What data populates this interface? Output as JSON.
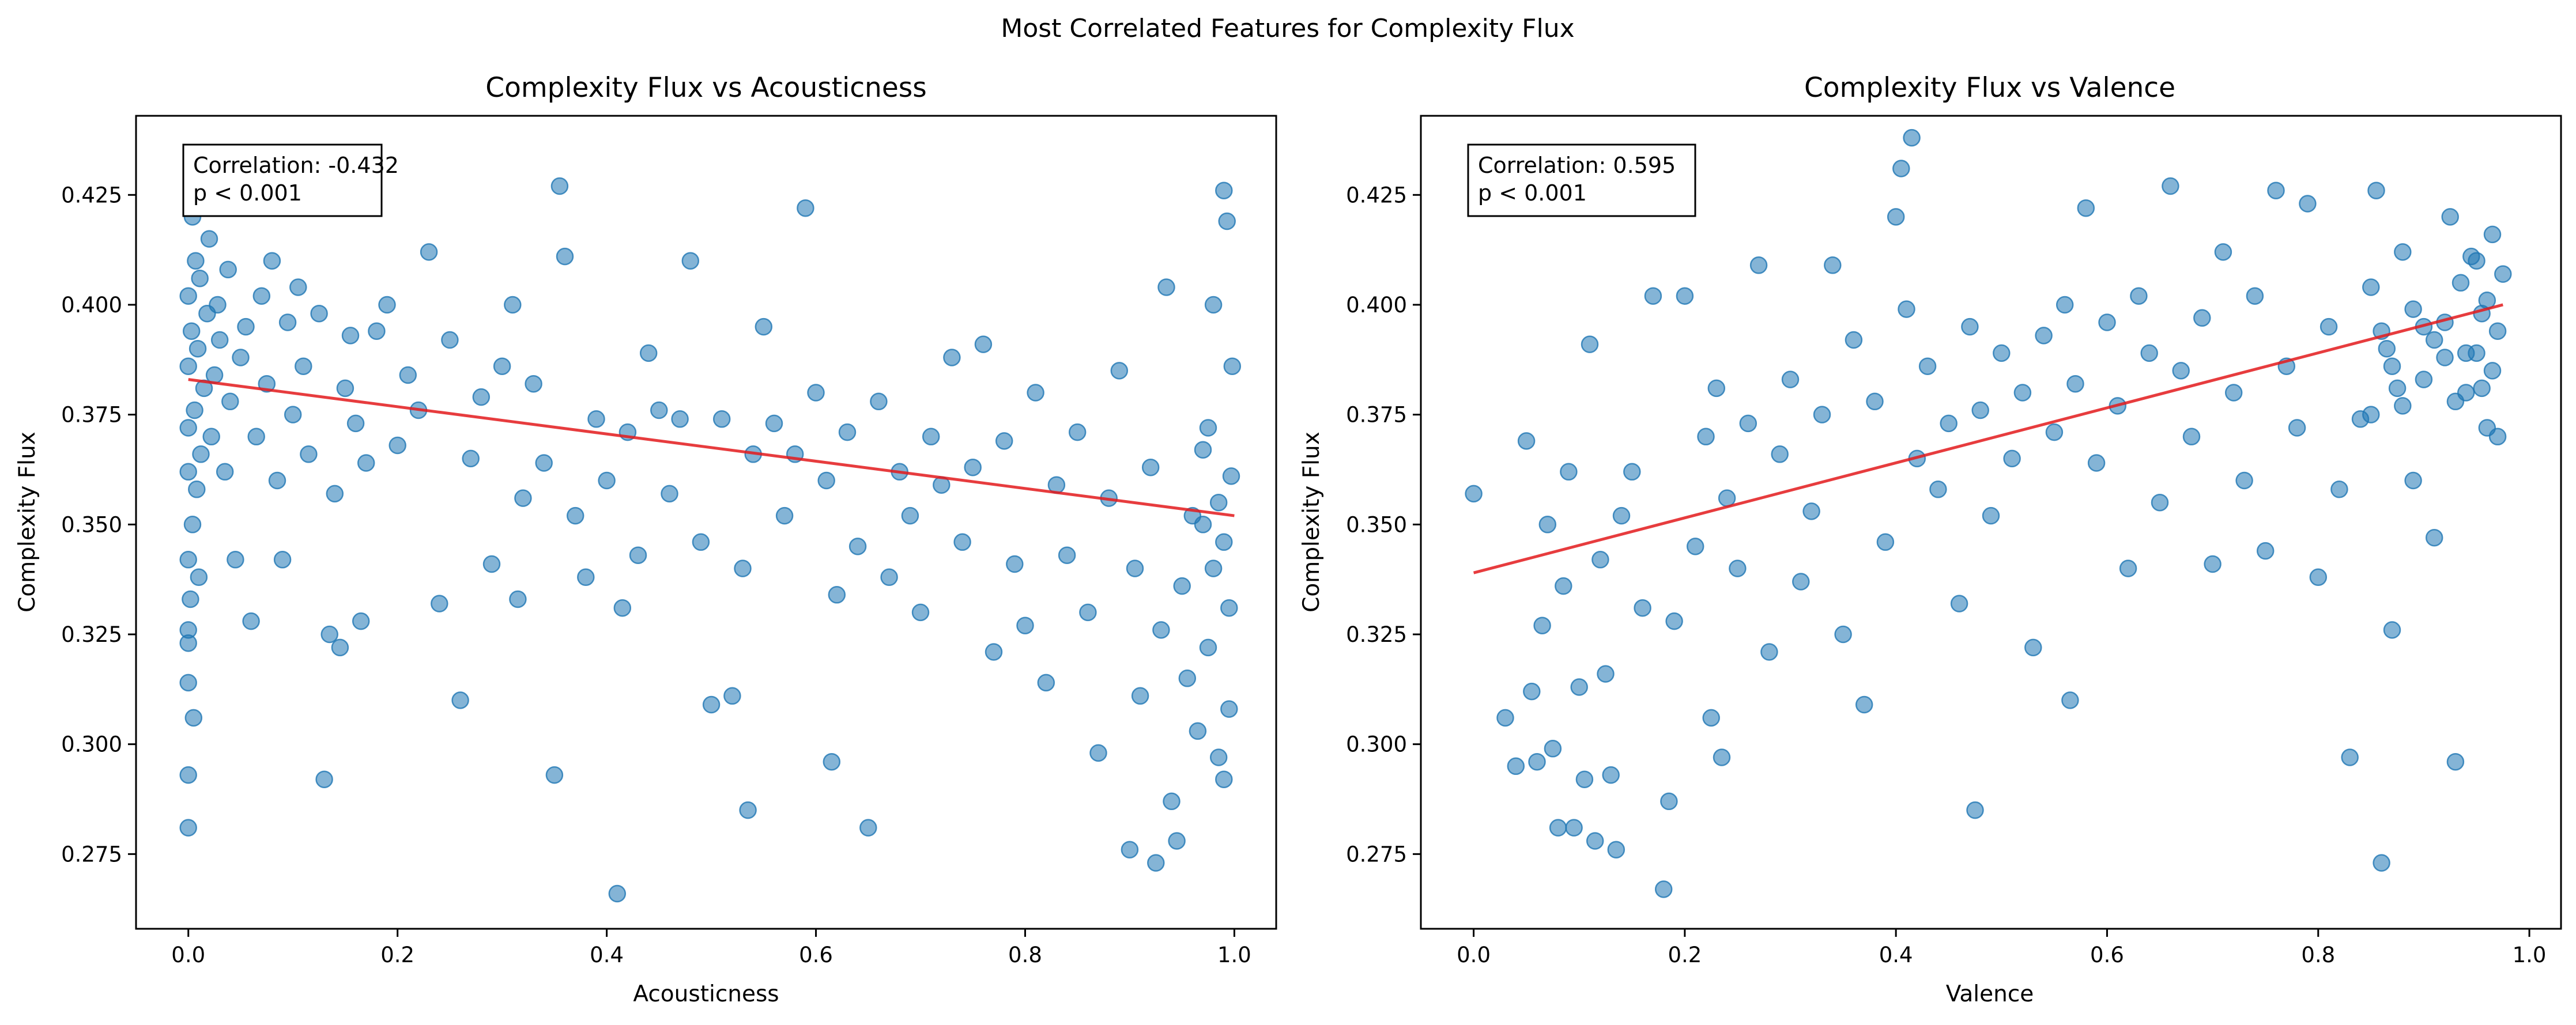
{
  "figure": {
    "title": "Most Correlated Features for Complexity Flux"
  },
  "colors": {
    "points": "#1f77b4",
    "fit_line": "#e31a1c"
  },
  "chart_data": [
    {
      "type": "scatter",
      "title": "Complexity Flux vs Acousticness",
      "xlabel": "Acousticness",
      "ylabel": "Complexity Flux",
      "xlim": [
        -0.05,
        1.04
      ],
      "ylim": [
        0.258,
        0.443
      ],
      "xticks": [
        0.0,
        0.2,
        0.4,
        0.6,
        0.8,
        1.0
      ],
      "xtick_labels": [
        "0.0",
        "0.2",
        "0.4",
        "0.6",
        "0.8",
        "1.0"
      ],
      "yticks": [
        0.275,
        0.3,
        0.325,
        0.35,
        0.375,
        0.4,
        0.425
      ],
      "ytick_labels": [
        "0.275",
        "0.300",
        "0.325",
        "0.350",
        "0.375",
        "0.400",
        "0.425"
      ],
      "annotation": {
        "correlation": "Correlation: -0.432",
        "p_value": "p < 0.001"
      },
      "trend_line": {
        "x": [
          0.0,
          1.0
        ],
        "y": [
          0.383,
          0.352
        ]
      },
      "points": [
        [
          0.0,
          0.281
        ],
        [
          0.0,
          0.293
        ],
        [
          0.005,
          0.306
        ],
        [
          0.0,
          0.314
        ],
        [
          0.0,
          0.323
        ],
        [
          0.0,
          0.326
        ],
        [
          0.002,
          0.333
        ],
        [
          0.01,
          0.338
        ],
        [
          0.0,
          0.342
        ],
        [
          0.004,
          0.35
        ],
        [
          0.008,
          0.358
        ],
        [
          0.0,
          0.362
        ],
        [
          0.012,
          0.366
        ],
        [
          0.0,
          0.372
        ],
        [
          0.006,
          0.376
        ],
        [
          0.015,
          0.381
        ],
        [
          0.0,
          0.386
        ],
        [
          0.009,
          0.39
        ],
        [
          0.003,
          0.394
        ],
        [
          0.018,
          0.398
        ],
        [
          0.0,
          0.402
        ],
        [
          0.011,
          0.406
        ],
        [
          0.007,
          0.41
        ],
        [
          0.02,
          0.415
        ],
        [
          0.004,
          0.42
        ],
        [
          0.013,
          0.426
        ],
        [
          0.025,
          0.384
        ],
        [
          0.03,
          0.392
        ],
        [
          0.022,
          0.37
        ],
        [
          0.028,
          0.4
        ],
        [
          0.035,
          0.362
        ],
        [
          0.04,
          0.378
        ],
        [
          0.038,
          0.408
        ],
        [
          0.045,
          0.342
        ],
        [
          0.05,
          0.388
        ],
        [
          0.055,
          0.395
        ],
        [
          0.06,
          0.328
        ],
        [
          0.065,
          0.37
        ],
        [
          0.07,
          0.402
        ],
        [
          0.075,
          0.382
        ],
        [
          0.08,
          0.41
        ],
        [
          0.085,
          0.36
        ],
        [
          0.09,
          0.342
        ],
        [
          0.095,
          0.396
        ],
        [
          0.1,
          0.375
        ],
        [
          0.105,
          0.404
        ],
        [
          0.11,
          0.386
        ],
        [
          0.115,
          0.366
        ],
        [
          0.12,
          0.426
        ],
        [
          0.125,
          0.398
        ],
        [
          0.13,
          0.292
        ],
        [
          0.135,
          0.325
        ],
        [
          0.14,
          0.357
        ],
        [
          0.145,
          0.322
        ],
        [
          0.15,
          0.381
        ],
        [
          0.155,
          0.393
        ],
        [
          0.16,
          0.373
        ],
        [
          0.165,
          0.328
        ],
        [
          0.17,
          0.364
        ],
        [
          0.18,
          0.394
        ],
        [
          0.19,
          0.4
        ],
        [
          0.2,
          0.368
        ],
        [
          0.21,
          0.384
        ],
        [
          0.22,
          0.376
        ],
        [
          0.23,
          0.412
        ],
        [
          0.24,
          0.332
        ],
        [
          0.25,
          0.392
        ],
        [
          0.26,
          0.31
        ],
        [
          0.27,
          0.365
        ],
        [
          0.28,
          0.379
        ],
        [
          0.29,
          0.341
        ],
        [
          0.3,
          0.386
        ],
        [
          0.31,
          0.4
        ],
        [
          0.315,
          0.333
        ],
        [
          0.32,
          0.356
        ],
        [
          0.33,
          0.382
        ],
        [
          0.34,
          0.364
        ],
        [
          0.35,
          0.293
        ],
        [
          0.355,
          0.427
        ],
        [
          0.36,
          0.411
        ],
        [
          0.37,
          0.352
        ],
        [
          0.38,
          0.338
        ],
        [
          0.39,
          0.374
        ],
        [
          0.4,
          0.36
        ],
        [
          0.41,
          0.266
        ],
        [
          0.415,
          0.331
        ],
        [
          0.42,
          0.371
        ],
        [
          0.43,
          0.343
        ],
        [
          0.44,
          0.389
        ],
        [
          0.45,
          0.376
        ],
        [
          0.46,
          0.357
        ],
        [
          0.47,
          0.374
        ],
        [
          0.48,
          0.41
        ],
        [
          0.49,
          0.346
        ],
        [
          0.5,
          0.309
        ],
        [
          0.51,
          0.374
        ],
        [
          0.52,
          0.311
        ],
        [
          0.53,
          0.34
        ],
        [
          0.535,
          0.285
        ],
        [
          0.54,
          0.366
        ],
        [
          0.55,
          0.395
        ],
        [
          0.56,
          0.373
        ],
        [
          0.57,
          0.352
        ],
        [
          0.58,
          0.366
        ],
        [
          0.59,
          0.422
        ],
        [
          0.6,
          0.38
        ],
        [
          0.61,
          0.36
        ],
        [
          0.615,
          0.296
        ],
        [
          0.62,
          0.334
        ],
        [
          0.63,
          0.371
        ],
        [
          0.64,
          0.345
        ],
        [
          0.65,
          0.281
        ],
        [
          0.66,
          0.378
        ],
        [
          0.67,
          0.338
        ],
        [
          0.68,
          0.362
        ],
        [
          0.69,
          0.352
        ],
        [
          0.7,
          0.33
        ],
        [
          0.71,
          0.37
        ],
        [
          0.72,
          0.359
        ],
        [
          0.73,
          0.388
        ],
        [
          0.74,
          0.346
        ],
        [
          0.75,
          0.363
        ],
        [
          0.76,
          0.391
        ],
        [
          0.77,
          0.321
        ],
        [
          0.78,
          0.369
        ],
        [
          0.79,
          0.341
        ],
        [
          0.8,
          0.327
        ],
        [
          0.81,
          0.38
        ],
        [
          0.82,
          0.314
        ],
        [
          0.83,
          0.359
        ],
        [
          0.84,
          0.343
        ],
        [
          0.85,
          0.371
        ],
        [
          0.86,
          0.33
        ],
        [
          0.87,
          0.298
        ],
        [
          0.88,
          0.356
        ],
        [
          0.89,
          0.385
        ],
        [
          0.9,
          0.276
        ],
        [
          0.905,
          0.34
        ],
        [
          0.91,
          0.311
        ],
        [
          0.92,
          0.363
        ],
        [
          0.925,
          0.273
        ],
        [
          0.93,
          0.326
        ],
        [
          0.935,
          0.404
        ],
        [
          0.94,
          0.287
        ],
        [
          0.945,
          0.278
        ],
        [
          0.95,
          0.336
        ],
        [
          0.955,
          0.315
        ],
        [
          0.96,
          0.352
        ],
        [
          0.965,
          0.303
        ],
        [
          0.97,
          0.367
        ],
        [
          0.975,
          0.322
        ],
        [
          0.98,
          0.4
        ],
        [
          0.985,
          0.297
        ],
        [
          0.99,
          0.346
        ],
        [
          0.99,
          0.426
        ],
        [
          0.993,
          0.419
        ],
        [
          0.995,
          0.331
        ],
        [
          0.997,
          0.361
        ],
        [
          0.998,
          0.386
        ],
        [
          0.99,
          0.292
        ],
        [
          0.985,
          0.355
        ],
        [
          0.98,
          0.34
        ],
        [
          0.975,
          0.372
        ],
        [
          0.97,
          0.35
        ],
        [
          0.995,
          0.308
        ]
      ]
    },
    {
      "type": "scatter",
      "title": "Complexity Flux vs Valence",
      "xlabel": "Valence",
      "ylabel": "Complexity Flux",
      "xlim": [
        -0.05,
        1.03
      ],
      "ylim": [
        0.258,
        0.443
      ],
      "xticks": [
        0.0,
        0.2,
        0.4,
        0.6,
        0.8,
        1.0
      ],
      "xtick_labels": [
        "0.0",
        "0.2",
        "0.4",
        "0.6",
        "0.8",
        "1.0"
      ],
      "yticks": [
        0.275,
        0.3,
        0.325,
        0.35,
        0.375,
        0.4,
        0.425
      ],
      "ytick_labels": [
        "0.275",
        "0.300",
        "0.325",
        "0.350",
        "0.375",
        "0.400",
        "0.425"
      ],
      "annotation": {
        "correlation": "Correlation: 0.595",
        "p_value": "p < 0.001"
      },
      "trend_line": {
        "x": [
          0.0,
          0.975
        ],
        "y": [
          0.339,
          0.4
        ]
      },
      "points": [
        [
          0.0,
          0.357
        ],
        [
          0.03,
          0.306
        ],
        [
          0.04,
          0.295
        ],
        [
          0.05,
          0.369
        ],
        [
          0.055,
          0.312
        ],
        [
          0.06,
          0.296
        ],
        [
          0.065,
          0.327
        ],
        [
          0.07,
          0.35
        ],
        [
          0.075,
          0.299
        ],
        [
          0.08,
          0.281
        ],
        [
          0.085,
          0.336
        ],
        [
          0.09,
          0.362
        ],
        [
          0.095,
          0.281
        ],
        [
          0.1,
          0.313
        ],
        [
          0.105,
          0.292
        ],
        [
          0.11,
          0.391
        ],
        [
          0.115,
          0.278
        ],
        [
          0.12,
          0.342
        ],
        [
          0.125,
          0.316
        ],
        [
          0.13,
          0.293
        ],
        [
          0.135,
          0.276
        ],
        [
          0.14,
          0.352
        ],
        [
          0.15,
          0.362
        ],
        [
          0.16,
          0.331
        ],
        [
          0.17,
          0.402
        ],
        [
          0.18,
          0.267
        ],
        [
          0.185,
          0.287
        ],
        [
          0.19,
          0.328
        ],
        [
          0.2,
          0.402
        ],
        [
          0.21,
          0.345
        ],
        [
          0.22,
          0.37
        ],
        [
          0.225,
          0.306
        ],
        [
          0.23,
          0.381
        ],
        [
          0.235,
          0.297
        ],
        [
          0.24,
          0.356
        ],
        [
          0.25,
          0.34
        ],
        [
          0.26,
          0.373
        ],
        [
          0.27,
          0.409
        ],
        [
          0.28,
          0.321
        ],
        [
          0.29,
          0.366
        ],
        [
          0.3,
          0.383
        ],
        [
          0.31,
          0.337
        ],
        [
          0.32,
          0.353
        ],
        [
          0.33,
          0.375
        ],
        [
          0.34,
          0.409
        ],
        [
          0.35,
          0.325
        ],
        [
          0.36,
          0.392
        ],
        [
          0.37,
          0.309
        ],
        [
          0.38,
          0.378
        ],
        [
          0.39,
          0.346
        ],
        [
          0.4,
          0.42
        ],
        [
          0.405,
          0.431
        ],
        [
          0.41,
          0.399
        ],
        [
          0.415,
          0.438
        ],
        [
          0.42,
          0.365
        ],
        [
          0.43,
          0.386
        ],
        [
          0.44,
          0.358
        ],
        [
          0.45,
          0.373
        ],
        [
          0.46,
          0.332
        ],
        [
          0.47,
          0.395
        ],
        [
          0.475,
          0.285
        ],
        [
          0.48,
          0.376
        ],
        [
          0.49,
          0.352
        ],
        [
          0.5,
          0.389
        ],
        [
          0.51,
          0.365
        ],
        [
          0.52,
          0.38
        ],
        [
          0.53,
          0.322
        ],
        [
          0.54,
          0.393
        ],
        [
          0.55,
          0.371
        ],
        [
          0.56,
          0.4
        ],
        [
          0.565,
          0.31
        ],
        [
          0.57,
          0.382
        ],
        [
          0.58,
          0.422
        ],
        [
          0.59,
          0.364
        ],
        [
          0.6,
          0.396
        ],
        [
          0.61,
          0.377
        ],
        [
          0.62,
          0.34
        ],
        [
          0.63,
          0.402
        ],
        [
          0.64,
          0.389
        ],
        [
          0.65,
          0.355
        ],
        [
          0.66,
          0.427
        ],
        [
          0.67,
          0.385
        ],
        [
          0.68,
          0.37
        ],
        [
          0.69,
          0.397
        ],
        [
          0.7,
          0.341
        ],
        [
          0.71,
          0.412
        ],
        [
          0.72,
          0.38
        ],
        [
          0.73,
          0.36
        ],
        [
          0.74,
          0.402
        ],
        [
          0.75,
          0.344
        ],
        [
          0.76,
          0.426
        ],
        [
          0.77,
          0.386
        ],
        [
          0.78,
          0.372
        ],
        [
          0.79,
          0.423
        ],
        [
          0.8,
          0.338
        ],
        [
          0.81,
          0.395
        ],
        [
          0.82,
          0.358
        ],
        [
          0.83,
          0.297
        ],
        [
          0.84,
          0.374
        ],
        [
          0.85,
          0.404
        ],
        [
          0.855,
          0.426
        ],
        [
          0.86,
          0.273
        ],
        [
          0.865,
          0.39
        ],
        [
          0.87,
          0.326
        ],
        [
          0.875,
          0.381
        ],
        [
          0.88,
          0.412
        ],
        [
          0.89,
          0.36
        ],
        [
          0.9,
          0.395
        ],
        [
          0.91,
          0.347
        ],
        [
          0.92,
          0.388
        ],
        [
          0.925,
          0.42
        ],
        [
          0.93,
          0.296
        ],
        [
          0.935,
          0.405
        ],
        [
          0.94,
          0.38
        ],
        [
          0.945,
          0.411
        ],
        [
          0.95,
          0.389
        ],
        [
          0.955,
          0.398
        ],
        [
          0.96,
          0.372
        ],
        [
          0.965,
          0.416
        ],
        [
          0.97,
          0.37
        ],
        [
          0.975,
          0.407
        ],
        [
          0.965,
          0.385
        ],
        [
          0.97,
          0.394
        ],
        [
          0.96,
          0.401
        ],
        [
          0.955,
          0.381
        ],
        [
          0.95,
          0.41
        ],
        [
          0.94,
          0.389
        ],
        [
          0.93,
          0.378
        ],
        [
          0.92,
          0.396
        ],
        [
          0.91,
          0.392
        ],
        [
          0.9,
          0.383
        ],
        [
          0.89,
          0.399
        ],
        [
          0.88,
          0.377
        ],
        [
          0.87,
          0.386
        ],
        [
          0.86,
          0.394
        ],
        [
          0.85,
          0.375
        ]
      ]
    }
  ]
}
